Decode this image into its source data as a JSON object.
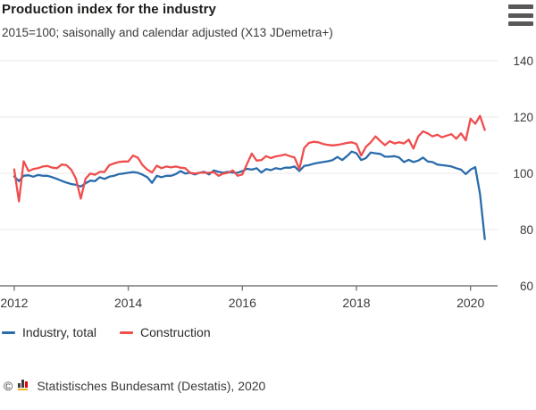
{
  "header": {
    "title": "Production index for the industry",
    "subtitle": "2015=100; saisonally and calendar adjusted (X13 JDemetra+)"
  },
  "menu": {
    "icon": "hamburger-icon"
  },
  "chart_data": {
    "type": "line",
    "title": "Production index for the industry",
    "subtitle": "2015=100; saisonally and calendar adjusted (X13 JDemetra+)",
    "x_frequency": "monthly",
    "x_start": "2012-01",
    "x_end": "2020-04",
    "x_tick_labels": [
      "2012",
      "2014",
      "2016",
      "2018",
      "2020"
    ],
    "x_tick_month_index": [
      0,
      24,
      48,
      72,
      96
    ],
    "y_ticks": [
      60,
      80,
      100,
      120,
      140
    ],
    "ylim": [
      60,
      140
    ],
    "grid": "horizontal",
    "legend_position": "bottom",
    "colors": {
      "industry": "#2a6cac",
      "construction": "#f04d4d",
      "grid": "#e8e8e8",
      "axis": "#7a7a7a",
      "tick_text": "#3a3a3a"
    },
    "series": [
      {
        "name": "Industry, total",
        "color": "#2a6cac",
        "values": [
          98.9,
          97.2,
          99.1,
          99.3,
          98.8,
          99.4,
          99.1,
          99.1,
          98.6,
          98.0,
          97.3,
          96.7,
          96.2,
          95.9,
          95.3,
          96.4,
          97.4,
          97.2,
          98.6,
          98.0,
          98.8,
          99.1,
          99.7,
          99.9,
          100.2,
          100.4,
          100.2,
          99.5,
          98.6,
          96.6,
          99.1,
          98.6,
          99.1,
          99.1,
          99.7,
          100.8,
          99.9,
          100.2,
          99.6,
          100.2,
          100.5,
          99.6,
          101.0,
          100.5,
          100.2,
          100.5,
          100.2,
          100.2,
          100.8,
          101.6,
          101.3,
          101.8,
          100.3,
          101.5,
          101.1,
          101.8,
          101.5,
          102.0,
          102.0,
          102.4,
          100.8,
          102.6,
          102.9,
          103.4,
          103.7,
          104.0,
          104.3,
          104.7,
          105.8,
          104.7,
          106.1,
          107.7,
          107.1,
          104.7,
          105.4,
          107.4,
          107.1,
          106.9,
          105.9,
          105.9,
          106.1,
          105.6,
          104.0,
          104.8,
          104.0,
          104.5,
          105.6,
          104.2,
          104.0,
          103.1,
          102.9,
          102.7,
          102.4,
          101.8,
          101.3,
          99.7,
          101.3,
          102.2,
          92.7,
          76.6
        ]
      },
      {
        "name": "Construction",
        "color": "#f04d4d",
        "values": [
          101.4,
          90.0,
          104.3,
          100.8,
          101.5,
          101.8,
          102.4,
          102.6,
          102.0,
          101.8,
          103.1,
          102.9,
          101.3,
          98.0,
          91.0,
          98.0,
          99.9,
          99.5,
          100.5,
          100.5,
          102.9,
          103.5,
          104.0,
          104.2,
          104.2,
          106.3,
          105.6,
          102.9,
          101.3,
          100.3,
          102.7,
          101.8,
          102.4,
          102.1,
          102.4,
          102.0,
          101.8,
          100.2,
          99.9,
          100.2,
          100.2,
          100.2,
          100.4,
          99.1,
          99.9,
          100.2,
          101.0,
          99.1,
          99.6,
          103.4,
          107.0,
          104.5,
          104.7,
          106.1,
          105.4,
          106.0,
          106.3,
          106.7,
          106.1,
          105.6,
          101.5,
          109.0,
          110.8,
          111.2,
          111.0,
          110.4,
          110.1,
          109.9,
          110.1,
          110.4,
          110.8,
          111.0,
          110.4,
          106.3,
          109.4,
          111.0,
          113.1,
          111.5,
          110.0,
          111.4,
          110.6,
          111.0,
          110.6,
          112.0,
          108.8,
          113.1,
          114.9,
          114.2,
          113.1,
          113.7,
          112.8,
          113.4,
          113.9,
          112.3,
          114.2,
          111.7,
          119.4,
          117.6,
          120.4,
          115.4
        ]
      }
    ]
  },
  "legend": {
    "items": [
      {
        "label": "Industry, total",
        "color": "#2a6cac"
      },
      {
        "label": "Construction",
        "color": "#f04d4d"
      }
    ]
  },
  "footer": {
    "copyright": "©",
    "logo": "destatis-bar-chart-icon",
    "source": "Statistisches Bundesamt (Destatis), 2020"
  }
}
